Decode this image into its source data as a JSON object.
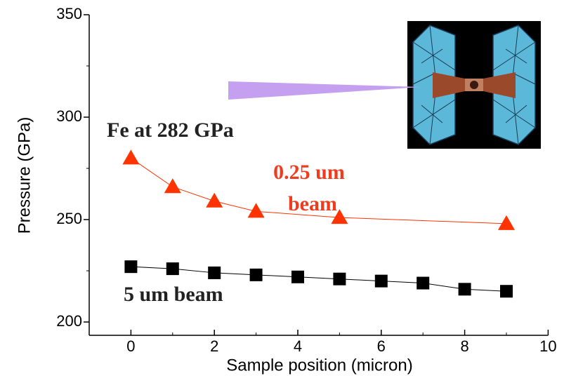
{
  "chart_data": {
    "type": "line",
    "x_label": "Sample position (micron)",
    "y_label": "Pressure (GPa)",
    "xlim": [
      -1,
      10
    ],
    "xticks": [
      0,
      2,
      4,
      6,
      8,
      10
    ],
    "ylim": [
      193.5,
      350
    ],
    "yticks": [
      200,
      250,
      300,
      350
    ],
    "series": [
      {
        "color": "#ff3300",
        "marker": "triangle",
        "x": [
          0,
          1,
          2,
          3,
          5,
          9
        ],
        "values": [
          280,
          266,
          259,
          254,
          251,
          248
        ]
      },
      {
        "color": "#000000",
        "marker": "square",
        "x": [
          0,
          1,
          2,
          3,
          4,
          5,
          6,
          7,
          8,
          9
        ],
        "values": [
          227,
          226,
          224,
          223,
          222,
          221,
          220,
          219,
          216,
          215
        ]
      }
    ],
    "annotations": [
      {
        "text": "Fe at 282 GPa",
        "color": "#222222"
      },
      {
        "text": "0.25 um",
        "color": "#f03c1e"
      },
      {
        "text": "beam",
        "color": "#f03c1e"
      },
      {
        "text": "5 um beam",
        "color": "#222222"
      }
    ]
  }
}
